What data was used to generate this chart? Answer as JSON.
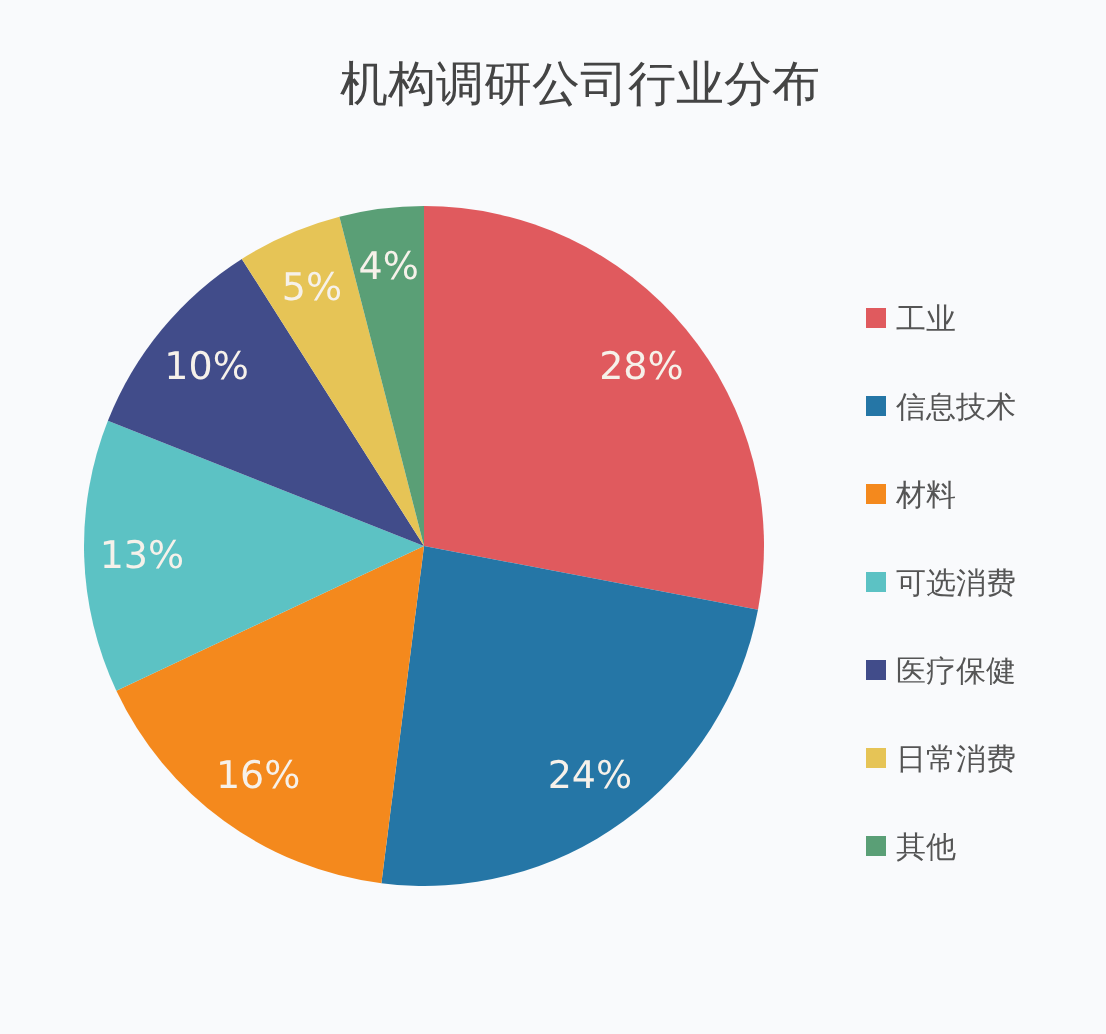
{
  "chart_data": {
    "type": "pie",
    "title": "机构调研公司行业分布",
    "categories": [
      "工业",
      "信息技术",
      "材料",
      "可选消费",
      "医疗保健",
      "日常消费",
      "其他"
    ],
    "values": [
      28,
      24,
      16,
      13,
      10,
      5,
      4
    ],
    "value_labels": [
      "28%",
      "24%",
      "16%",
      "13%",
      "10%",
      "5%",
      "4%"
    ],
    "colors": [
      "#e05a5e",
      "#2576a6",
      "#f4891d",
      "#5cc2c4",
      "#414c8a",
      "#e6c456",
      "#5a9f76"
    ],
    "legend": "right"
  }
}
